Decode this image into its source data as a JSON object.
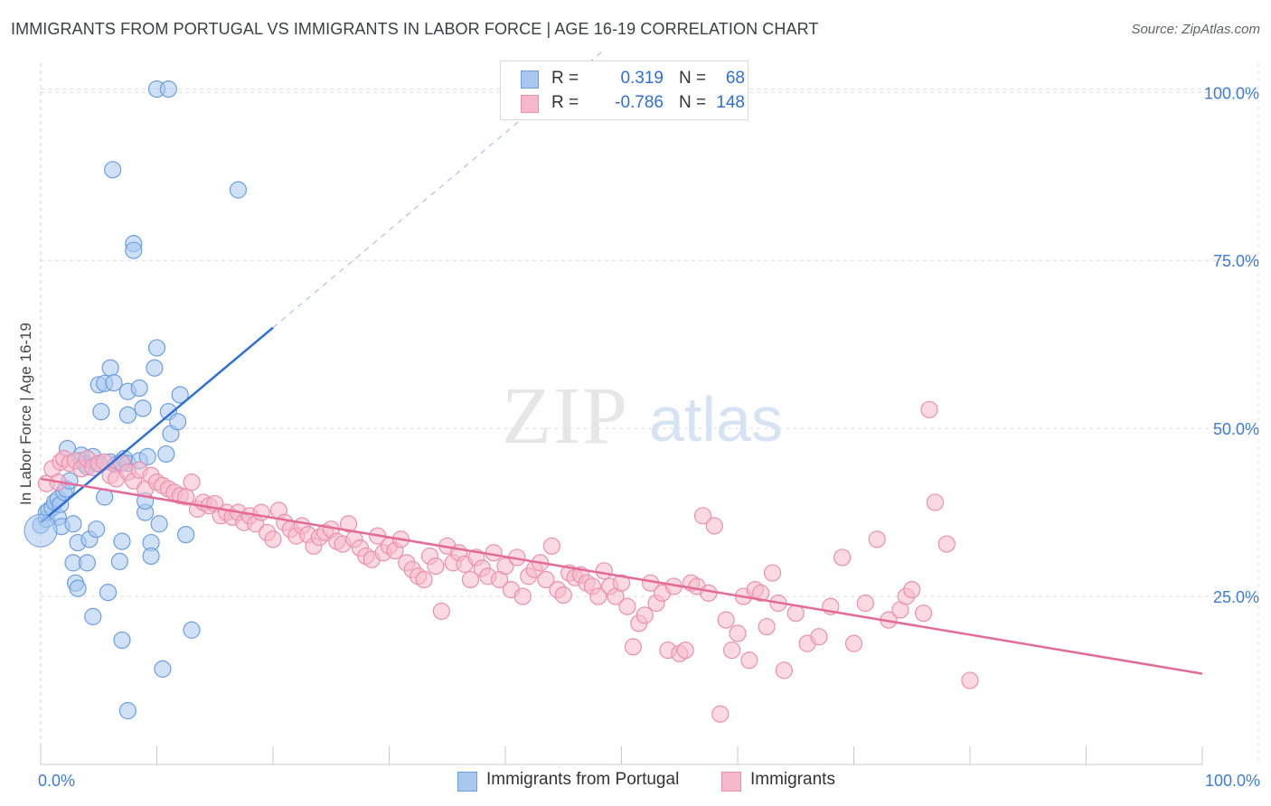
{
  "header": {
    "title": "IMMIGRANTS FROM PORTUGAL VS IMMIGRANTS IN LABOR FORCE | AGE 16-19 CORRELATION CHART",
    "source": "Source: ZipAtlas.com"
  },
  "watermark": {
    "zip": "ZIP",
    "atlas": "atlas"
  },
  "legend_top": {
    "rows": [
      {
        "r_label": "R =",
        "r_value": "0.319",
        "n_label": "N =",
        "n_value": "68"
      },
      {
        "r_label": "R =",
        "r_value": "-0.786",
        "n_label": "N =",
        "n_value": "148"
      }
    ]
  },
  "legend_bottom": {
    "items": [
      {
        "label": "Immigrants from Portugal"
      },
      {
        "label": "Immigrants"
      }
    ]
  },
  "colors": {
    "blue_fill": "#a9c8f0",
    "blue_stroke": "#6b9fe0",
    "blue_line": "#2e6fd6",
    "pink_fill": "#f6b9cb",
    "pink_stroke": "#ec8fae",
    "pink_line": "#e46b97",
    "tick_label": "#3d7bd9",
    "grid": "#dcdcdc"
  },
  "chart_data": {
    "type": "scatter",
    "title": "IMMIGRANTS FROM PORTUGAL VS IMMIGRANTS IN LABOR FORCE | AGE 16-19 CORRELATION CHART",
    "xlabel": "",
    "ylabel": "In Labor Force | Age 16-19",
    "xlim": [
      0,
      100
    ],
    "ylim": [
      0,
      105
    ],
    "x_tick_labels": [
      "0.0%",
      "100.0%"
    ],
    "y_ticks": [
      25,
      50,
      75,
      100
    ],
    "y_tick_labels": [
      "25.0%",
      "50.0%",
      "75.0%",
      "100.0%"
    ],
    "grid": true,
    "legend_position": "top-center",
    "series": [
      {
        "name": "Immigrants from Portugal",
        "color": "blue",
        "trend": {
          "x": [
            0,
            20
          ],
          "y": [
            36,
            65
          ],
          "dashed_to": [
            100,
            161
          ]
        },
        "points": [
          [
            0,
            35.6
          ],
          [
            0.5,
            36.5
          ],
          [
            0.5,
            37.5
          ],
          [
            0.7,
            37.8
          ],
          [
            1,
            38.2
          ],
          [
            1.2,
            39.0
          ],
          [
            1.5,
            36.8
          ],
          [
            1.5,
            39.5
          ],
          [
            1.7,
            38.7
          ],
          [
            1.8,
            35.4
          ],
          [
            2.0,
            40.5
          ],
          [
            2.2,
            41.0
          ],
          [
            2.5,
            42.2
          ],
          [
            2.3,
            47.0
          ],
          [
            2.8,
            30.0
          ],
          [
            2.8,
            35.8
          ],
          [
            3.0,
            27.0
          ],
          [
            3.2,
            26.2
          ],
          [
            3.2,
            33.0
          ],
          [
            3.5,
            45.2
          ],
          [
            3.5,
            46.0
          ],
          [
            3.8,
            44.7
          ],
          [
            4.0,
            30.0
          ],
          [
            4.0,
            44.3
          ],
          [
            4.2,
            33.5
          ],
          [
            4.5,
            22.0
          ],
          [
            4.5,
            45.8
          ],
          [
            4.8,
            35.0
          ],
          [
            5.0,
            56.5
          ],
          [
            5.0,
            44.7
          ],
          [
            5.2,
            52.5
          ],
          [
            5.5,
            56.7
          ],
          [
            5.5,
            39.8
          ],
          [
            5.8,
            25.6
          ],
          [
            6.0,
            59.0
          ],
          [
            6.0,
            45.0
          ],
          [
            6.2,
            88.5
          ],
          [
            6.3,
            56.8
          ],
          [
            6.5,
            44.6
          ],
          [
            6.8,
            30.2
          ],
          [
            7.0,
            33.2
          ],
          [
            7.0,
            18.5
          ],
          [
            7.5,
            52.0
          ],
          [
            7.5,
            55.5
          ],
          [
            7.5,
            8.0
          ],
          [
            7.0,
            45.0
          ],
          [
            7.2,
            45.5
          ],
          [
            7.5,
            44.8
          ],
          [
            8.0,
            77.5
          ],
          [
            8.0,
            76.5
          ],
          [
            8.5,
            56.0
          ],
          [
            8.5,
            45.2
          ],
          [
            8.8,
            53.0
          ],
          [
            9.0,
            37.5
          ],
          [
            9.0,
            39.2
          ],
          [
            9.2,
            45.8
          ],
          [
            9.5,
            33.0
          ],
          [
            9.5,
            31.0
          ],
          [
            9.8,
            59.0
          ],
          [
            10.0,
            62.0
          ],
          [
            10.2,
            35.8
          ],
          [
            10.0,
            100.5
          ],
          [
            11.0,
            100.5
          ],
          [
            10.5,
            14.2
          ],
          [
            10.8,
            46.2
          ],
          [
            11.0,
            52.5
          ],
          [
            11.2,
            49.2
          ],
          [
            11.8,
            51.0
          ],
          [
            12.0,
            55.0
          ],
          [
            12.5,
            34.2
          ],
          [
            13.0,
            20.0
          ],
          [
            17.0,
            85.5
          ]
        ]
      },
      {
        "name": "Immigrants",
        "color": "pink",
        "trend": {
          "x": [
            0,
            100
          ],
          "y": [
            42.5,
            13.5
          ]
        },
        "points": [
          [
            0.5,
            41.8
          ],
          [
            1.0,
            44.0
          ],
          [
            1.5,
            42.0
          ],
          [
            1.7,
            45.0
          ],
          [
            2.0,
            45.5
          ],
          [
            2.5,
            44.8
          ],
          [
            3.0,
            45.2
          ],
          [
            3.5,
            44.0
          ],
          [
            4.0,
            45.5
          ],
          [
            4.5,
            44.2
          ],
          [
            5.0,
            44.8
          ],
          [
            5.5,
            45.0
          ],
          [
            6.0,
            43.0
          ],
          [
            6.5,
            42.5
          ],
          [
            7.0,
            44.8
          ],
          [
            7.5,
            43.5
          ],
          [
            8.0,
            42.2
          ],
          [
            8.5,
            43.8
          ],
          [
            9.0,
            41.0
          ],
          [
            9.5,
            43.0
          ],
          [
            10.0,
            42.0
          ],
          [
            10.5,
            41.5
          ],
          [
            11.0,
            41.0
          ],
          [
            11.5,
            40.5
          ],
          [
            12.0,
            40.0
          ],
          [
            12.5,
            39.8
          ],
          [
            13.0,
            42.0
          ],
          [
            13.5,
            38.0
          ],
          [
            14.0,
            39.0
          ],
          [
            14.5,
            38.5
          ],
          [
            15.0,
            38.8
          ],
          [
            15.5,
            37.0
          ],
          [
            16.0,
            37.5
          ],
          [
            16.5,
            36.8
          ],
          [
            17.0,
            37.5
          ],
          [
            17.5,
            36.0
          ],
          [
            18.0,
            37.0
          ],
          [
            18.5,
            35.8
          ],
          [
            19.0,
            37.5
          ],
          [
            19.5,
            34.5
          ],
          [
            20.0,
            33.5
          ],
          [
            20.5,
            37.8
          ],
          [
            21.0,
            36.0
          ],
          [
            21.5,
            35.0
          ],
          [
            22.0,
            34.0
          ],
          [
            22.5,
            35.5
          ],
          [
            23.0,
            34.2
          ],
          [
            23.5,
            32.5
          ],
          [
            24.0,
            33.8
          ],
          [
            24.5,
            34.5
          ],
          [
            25.0,
            35.0
          ],
          [
            25.5,
            33.2
          ],
          [
            26.0,
            32.8
          ],
          [
            26.5,
            35.8
          ],
          [
            27.0,
            33.5
          ],
          [
            27.5,
            32.2
          ],
          [
            28.0,
            31.0
          ],
          [
            28.5,
            30.5
          ],
          [
            29.0,
            34.0
          ],
          [
            29.5,
            31.5
          ],
          [
            30.0,
            32.5
          ],
          [
            30.5,
            31.8
          ],
          [
            31.0,
            33.5
          ],
          [
            31.5,
            30.0
          ],
          [
            32.0,
            29.0
          ],
          [
            32.5,
            28.0
          ],
          [
            33.0,
            27.5
          ],
          [
            33.5,
            31.0
          ],
          [
            34.0,
            29.5
          ],
          [
            34.5,
            22.8
          ],
          [
            35.0,
            32.5
          ],
          [
            35.5,
            30.0
          ],
          [
            36.0,
            31.5
          ],
          [
            36.5,
            29.8
          ],
          [
            37.0,
            27.5
          ],
          [
            37.5,
            30.8
          ],
          [
            38.0,
            29.2
          ],
          [
            38.5,
            28.0
          ],
          [
            39.0,
            31.5
          ],
          [
            39.5,
            27.5
          ],
          [
            40.0,
            29.5
          ],
          [
            40.5,
            26.0
          ],
          [
            41.0,
            30.8
          ],
          [
            41.5,
            25.0
          ],
          [
            42.0,
            28.0
          ],
          [
            42.5,
            29.0
          ],
          [
            43.0,
            30.0
          ],
          [
            43.5,
            27.5
          ],
          [
            44.0,
            32.5
          ],
          [
            44.5,
            26.0
          ],
          [
            45.0,
            25.2
          ],
          [
            45.5,
            28.5
          ],
          [
            46.0,
            27.8
          ],
          [
            46.5,
            28.2
          ],
          [
            47.0,
            27.0
          ],
          [
            47.5,
            26.5
          ],
          [
            48.0,
            25.0
          ],
          [
            48.5,
            28.8
          ],
          [
            49.0,
            26.5
          ],
          [
            49.5,
            25.0
          ],
          [
            50.0,
            27.0
          ],
          [
            50.5,
            23.5
          ],
          [
            51.0,
            17.5
          ],
          [
            51.5,
            21.0
          ],
          [
            52.0,
            22.2
          ],
          [
            52.5,
            27.0
          ],
          [
            53.0,
            24.0
          ],
          [
            53.5,
            25.5
          ],
          [
            54.0,
            17.0
          ],
          [
            54.5,
            26.5
          ],
          [
            55.0,
            16.5
          ],
          [
            55.5,
            17.0
          ],
          [
            56.0,
            27.0
          ],
          [
            56.5,
            26.5
          ],
          [
            57.0,
            37.0
          ],
          [
            57.5,
            25.5
          ],
          [
            58.0,
            35.5
          ],
          [
            58.5,
            7.5
          ],
          [
            59.0,
            21.5
          ],
          [
            59.5,
            17.0
          ],
          [
            60.0,
            19.5
          ],
          [
            60.5,
            25.0
          ],
          [
            61.0,
            15.5
          ],
          [
            61.5,
            26.0
          ],
          [
            62.0,
            25.5
          ],
          [
            62.5,
            20.5
          ],
          [
            63.0,
            28.5
          ],
          [
            63.5,
            24.0
          ],
          [
            64.0,
            14.0
          ],
          [
            65.0,
            22.5
          ],
          [
            66.0,
            18.0
          ],
          [
            67.0,
            19.0
          ],
          [
            68.0,
            23.5
          ],
          [
            69.0,
            30.8
          ],
          [
            70.0,
            18.0
          ],
          [
            71.0,
            24.0
          ],
          [
            72.0,
            33.5
          ],
          [
            73.0,
            21.5
          ],
          [
            74.0,
            23.0
          ],
          [
            74.5,
            25.0
          ],
          [
            75.0,
            26.0
          ],
          [
            76.0,
            22.5
          ],
          [
            76.5,
            52.8
          ],
          [
            77.0,
            39.0
          ],
          [
            78.0,
            32.8
          ],
          [
            80.0,
            12.5
          ]
        ]
      }
    ]
  }
}
